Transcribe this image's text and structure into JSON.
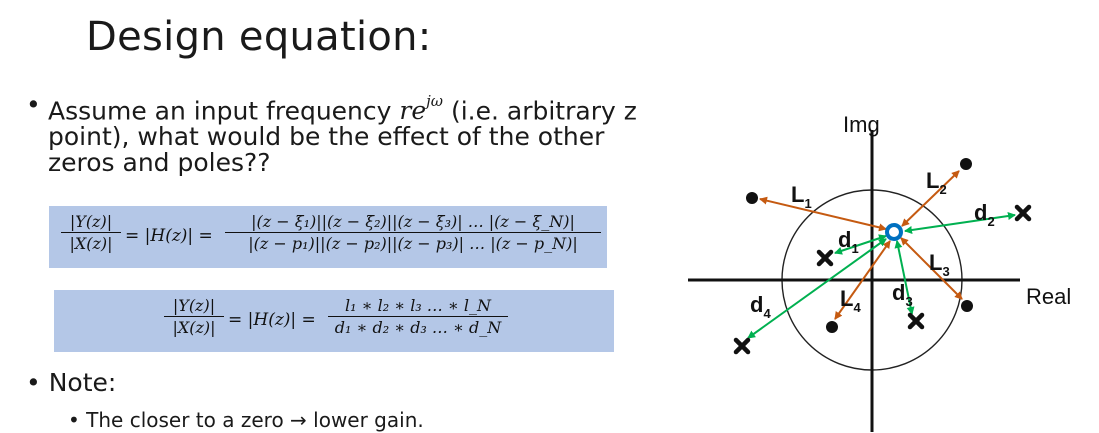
{
  "slide": {
    "title": "Design equation:",
    "bullet1": {
      "text_before": "Assume an input frequency ",
      "freq_base": "re",
      "freq_exp": "jω",
      "text_after": " (i.e. arbitrary z point), what would be the effect of the other zeros and poles??"
    },
    "eq1": {
      "lhs_num": "|Y(z)|",
      "lhs_den": "|X(z)|",
      "mid": "= |H(z)| =",
      "rhs_num": "|(z − ξ₁)||(z − ξ₂)||(z − ξ₃)| … |(z − ξ_N)|",
      "rhs_den": "|(z − p₁)||(z − p₂)||(z − p₃)| … |(z − p_N)|"
    },
    "eq2": {
      "lhs_num": "|Y(z)|",
      "lhs_den": "|X(z)|",
      "mid": "= |H(z)| =",
      "rhs_num": "l₁ ∗ l₂ ∗ l₃ … ∗ l_N",
      "rhs_den": "d₁ ∗ d₂ ∗ d₃ … ∗ d_N"
    },
    "bullet2": "Note:",
    "bullet3": "The closer to a zero → lower gain.",
    "bullet_glyph": "•"
  },
  "diagram": {
    "axis_imag_label": "Img",
    "axis_real_label": "Real",
    "zero_to_point_color": "#c55a11",
    "pole_to_point_color": "#00b050",
    "test_point_color": "#0070c0",
    "zero_labels": [
      {
        "main": "L",
        "sub": "1"
      },
      {
        "main": "L",
        "sub": "2"
      },
      {
        "main": "L",
        "sub": "3"
      },
      {
        "main": "L",
        "sub": "4"
      }
    ],
    "pole_labels": [
      {
        "main": "d",
        "sub": "1"
      },
      {
        "main": "d",
        "sub": "2"
      },
      {
        "main": "d",
        "sub": "3"
      },
      {
        "main": "d",
        "sub": "4"
      }
    ]
  }
}
